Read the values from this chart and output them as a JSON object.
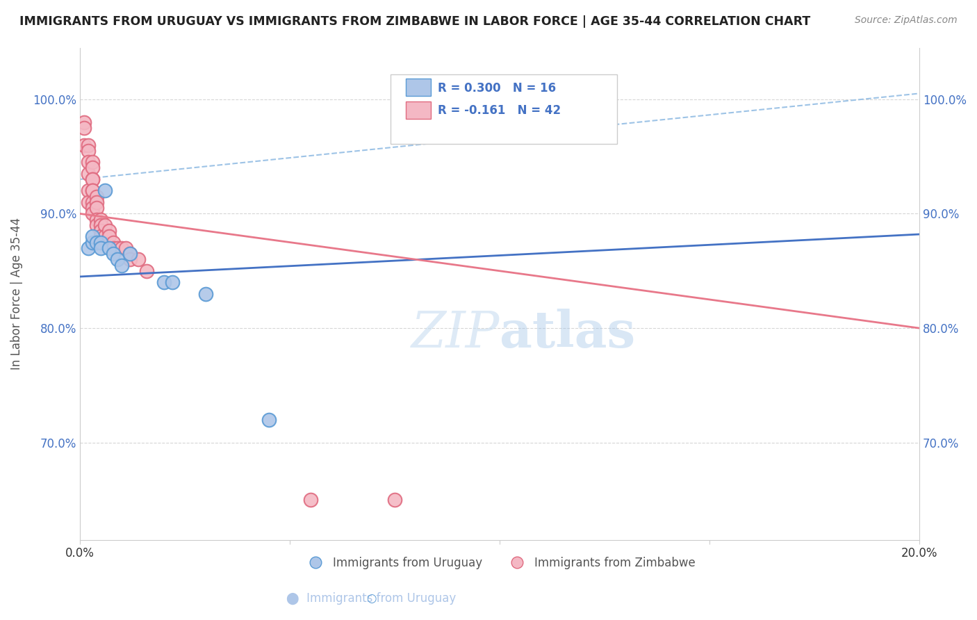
{
  "title": "IMMIGRANTS FROM URUGUAY VS IMMIGRANTS FROM ZIMBABWE IN LABOR FORCE | AGE 35-44 CORRELATION CHART",
  "source": "Source: ZipAtlas.com",
  "ylabel": "In Labor Force | Age 35-44",
  "xlim": [
    0.0,
    0.2
  ],
  "ylim": [
    0.615,
    1.045
  ],
  "yticks": [
    0.7,
    0.8,
    0.9,
    1.0
  ],
  "ytick_labels": [
    "70.0%",
    "80.0%",
    "90.0%",
    "100.0%"
  ],
  "xticks": [
    0.0,
    0.05,
    0.1,
    0.15,
    0.2
  ],
  "xtick_labels": [
    "0.0%",
    "",
    "",
    "",
    "20.0%"
  ],
  "uruguay_color": "#aec6e8",
  "uruguay_edge": "#5b9bd5",
  "zimbabwe_color": "#f4b8c4",
  "zimbabwe_edge": "#e06b80",
  "uruguay_line_color": "#4472c4",
  "zimbabwe_line_color": "#e8788a",
  "dashed_line_color": "#9dc3e6",
  "r_uruguay": 0.3,
  "n_uruguay": 16,
  "r_zimbabwe": -0.161,
  "n_zimbabwe": 42,
  "legend_color": "#4472c4",
  "watermark": "ZIPatlas",
  "uruguay_x": [
    0.002,
    0.003,
    0.003,
    0.004,
    0.005,
    0.005,
    0.006,
    0.007,
    0.008,
    0.009,
    0.01,
    0.012,
    0.02,
    0.022,
    0.03,
    0.045
  ],
  "uruguay_y": [
    0.87,
    0.875,
    0.88,
    0.875,
    0.875,
    0.87,
    0.92,
    0.87,
    0.865,
    0.86,
    0.855,
    0.865,
    0.84,
    0.84,
    0.83,
    0.72
  ],
  "zimbabwe_x": [
    0.001,
    0.001,
    0.001,
    0.002,
    0.002,
    0.002,
    0.002,
    0.002,
    0.002,
    0.003,
    0.003,
    0.003,
    0.003,
    0.003,
    0.003,
    0.003,
    0.003,
    0.003,
    0.004,
    0.004,
    0.004,
    0.004,
    0.004,
    0.005,
    0.005,
    0.005,
    0.005,
    0.006,
    0.006,
    0.007,
    0.007,
    0.008,
    0.008,
    0.009,
    0.01,
    0.011,
    0.012,
    0.012,
    0.014,
    0.016,
    0.055,
    0.075
  ],
  "zimbabwe_y": [
    0.98,
    0.975,
    0.96,
    0.96,
    0.955,
    0.945,
    0.935,
    0.92,
    0.91,
    0.945,
    0.94,
    0.93,
    0.93,
    0.92,
    0.92,
    0.91,
    0.905,
    0.9,
    0.915,
    0.91,
    0.905,
    0.895,
    0.89,
    0.895,
    0.89,
    0.885,
    0.88,
    0.89,
    0.88,
    0.885,
    0.88,
    0.875,
    0.87,
    0.87,
    0.87,
    0.87,
    0.865,
    0.86,
    0.86,
    0.85,
    0.65,
    0.65
  ],
  "background_color": "#ffffff",
  "grid_color": "#cccccc",
  "uruguay_line_x0": 0.0,
  "uruguay_line_y0": 0.845,
  "uruguay_line_x1": 0.2,
  "uruguay_line_y1": 0.882,
  "zimbabwe_line_x0": 0.0,
  "zimbabwe_line_y0": 0.9,
  "zimbabwe_line_x1": 0.2,
  "zimbabwe_line_y1": 0.8,
  "dashed_line_x0": 0.0,
  "dashed_line_y0": 0.93,
  "dashed_line_x1": 0.2,
  "dashed_line_y1": 1.005
}
